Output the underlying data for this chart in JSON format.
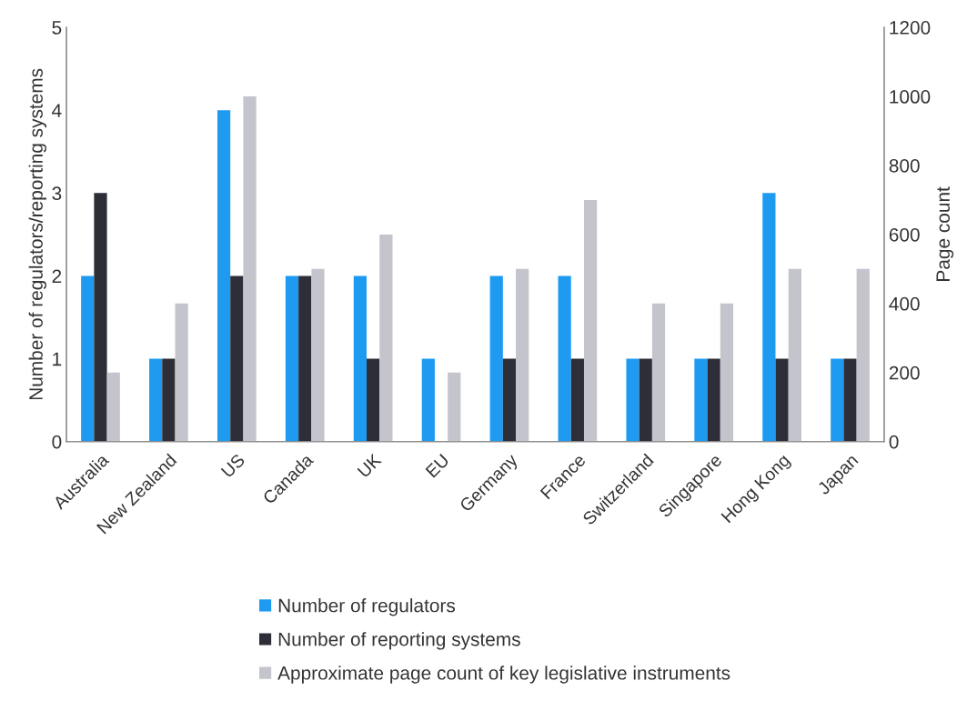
{
  "chart_data": {
    "type": "bar",
    "categories": [
      "Australia",
      "New Zealand",
      "US",
      "Canada",
      "UK",
      "EU",
      "Germany",
      "France",
      "Switzerland",
      "Singapore",
      "Hong Kong",
      "Japan"
    ],
    "series": [
      {
        "name": "Number of regulators",
        "color": "#1e9bf0",
        "values": [
          2,
          1,
          4,
          2,
          2,
          1,
          2,
          2,
          1,
          1,
          3,
          1
        ]
      },
      {
        "name": "Number of reporting systems",
        "color": "#2e2e38",
        "values": [
          3,
          1,
          2,
          2,
          1,
          0,
          1,
          1,
          1,
          1,
          1,
          1
        ]
      },
      {
        "name": "Approximate page count of key legislative instruments",
        "color": "#c4c4cd",
        "axis": "y2",
        "values": [
          200,
          400,
          1000,
          500,
          600,
          200,
          500,
          700,
          400,
          400,
          500,
          500
        ]
      }
    ],
    "ylabel": "Number of regulators/reporting systems",
    "y2label": "Page count",
    "ylim": [
      0,
      5
    ],
    "yticks": [
      0,
      1,
      2,
      3,
      4,
      5
    ],
    "y2lim": [
      0,
      1200
    ],
    "y2ticks": [
      0,
      200,
      400,
      600,
      800,
      1000,
      1200
    ],
    "grid": false,
    "legend": "bottom"
  }
}
